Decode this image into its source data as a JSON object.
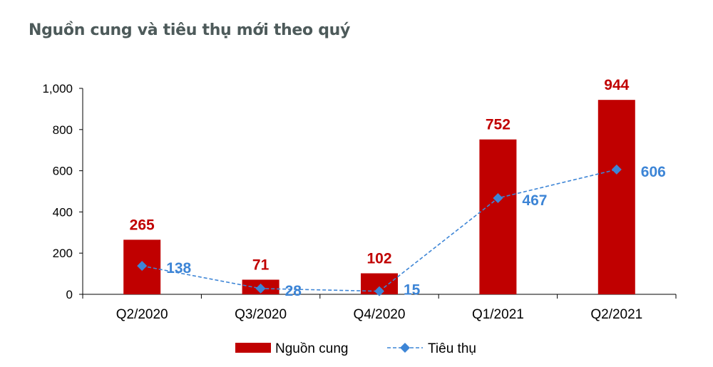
{
  "chart_data": {
    "type": "bar+line",
    "title": "Nguồn cung và tiêu thụ mới theo quý",
    "categories": [
      "Q2/2020",
      "Q3/2020",
      "Q4/2020",
      "Q1/2021",
      "Q2/2021"
    ],
    "series": [
      {
        "name": "Nguồn cung",
        "type": "bar",
        "values": [
          265,
          71,
          102,
          752,
          944
        ],
        "color": "#c00000"
      },
      {
        "name": "Tiêu thụ",
        "type": "line",
        "values": [
          138,
          28,
          15,
          467,
          606
        ],
        "color": "#3d85d6",
        "line_style": "dashed",
        "marker": "diamond"
      }
    ],
    "yticks": [
      "0",
      "200",
      "400",
      "600",
      "800",
      "1,000"
    ],
    "ylim": [
      0,
      1000
    ],
    "grid": false,
    "legend": "bottom"
  }
}
